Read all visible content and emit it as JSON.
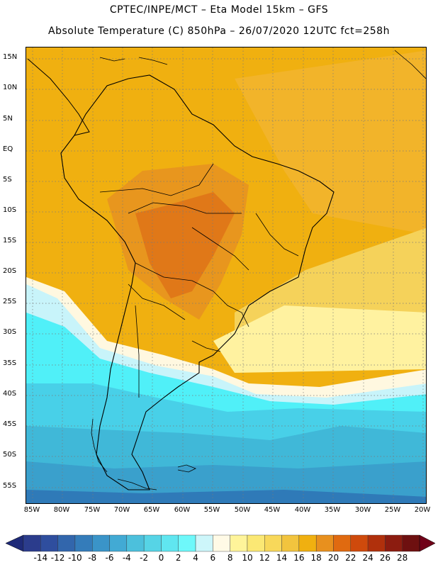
{
  "header": {
    "line1": "CPTEC/INPE/MCT –  Eta Model 15km – GFS",
    "line2": "Absolute Temperature (C) 850hPa – 26/07/2020 12UTC fct=258h"
  },
  "axes": {
    "lat_labels": [
      "15N",
      "10N",
      "5N",
      "EQ",
      "5S",
      "10S",
      "15S",
      "20S",
      "25S",
      "30S",
      "35S",
      "40S",
      "45S",
      "50S",
      "55S"
    ],
    "lon_labels": [
      "85W",
      "80W",
      "75W",
      "70W",
      "65W",
      "60W",
      "55W",
      "50W",
      "45W",
      "40W",
      "35W",
      "30W",
      "25W",
      "20W"
    ]
  },
  "colors": {
    "ocean_warm": "#f0b010",
    "land_hot": "#e8961e",
    "land_hotter": "#e07818",
    "tropics_band": "#f2b42a",
    "subtropic_yellow": "#f5d25a",
    "pale_yellow": "#fff2a0",
    "cream": "#fff8e0",
    "pale_cyan": "#c8f4fa",
    "cyan": "#50f0f8",
    "light_blue": "#48d0e8",
    "mid_blue": "#40b8d8",
    "blue": "#3aa0cc",
    "deep_blue": "#2f7ab8",
    "grid": "#7a7a7a",
    "coast": "#000000"
  },
  "colorbar": {
    "ticks": [
      "-14",
      "-12",
      "-10",
      "-8",
      "-6",
      "-4",
      "-2",
      "0",
      "2",
      "4",
      "6",
      "8",
      "10",
      "12",
      "14",
      "16",
      "18",
      "20",
      "22",
      "24",
      "26",
      "28"
    ],
    "colors": [
      "#2b3c8c",
      "#2f4e9e",
      "#3266ac",
      "#347cba",
      "#3a94c8",
      "#42aad4",
      "#4cc0dc",
      "#56d4e6",
      "#60e6f0",
      "#6ef8fa",
      "#cdf6fa",
      "#fffae6",
      "#fff49a",
      "#fbe874",
      "#f8d85a",
      "#f2c43e",
      "#f0b010",
      "#e8901e",
      "#e06a10",
      "#cf4a0c",
      "#b0300c",
      "#8c1c10",
      "#6e1010"
    ],
    "under_color": "#1e2a78",
    "over_color": "#700018"
  }
}
